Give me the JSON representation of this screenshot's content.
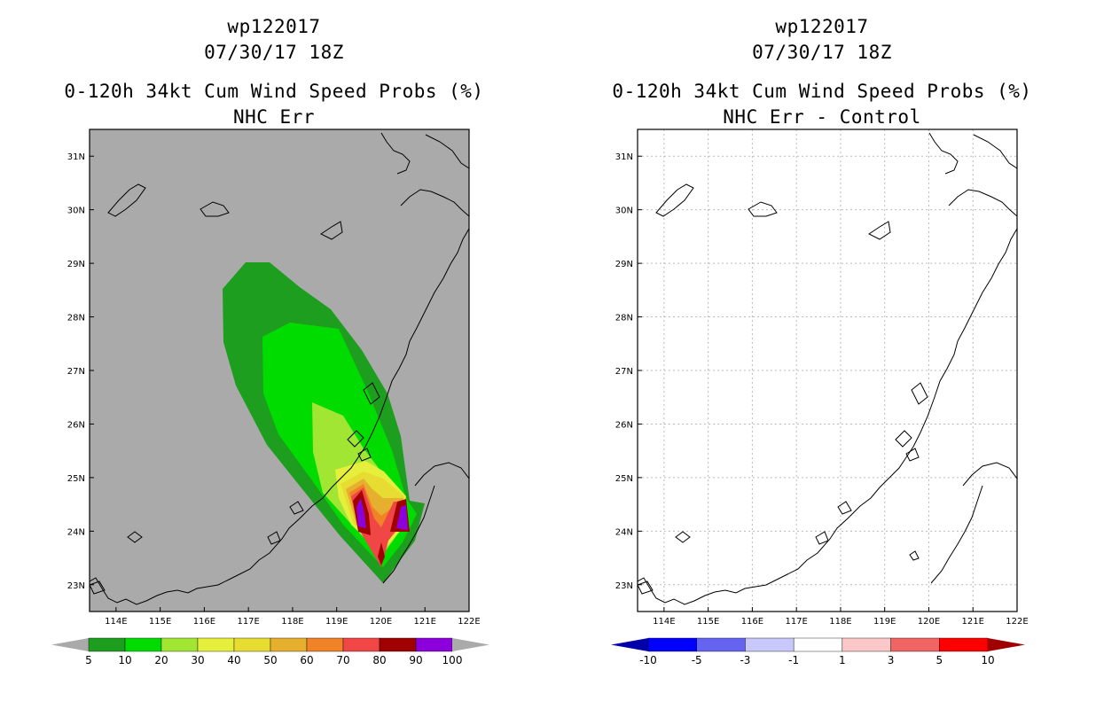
{
  "panels": [
    {
      "storm_id": "wp122017",
      "datetime": "07/30/17 18Z",
      "product": "0-120h 34kt Cum Wind Speed Probs (%)",
      "subtitle": "NHC Err",
      "lat_labels": [
        "31N",
        "30N",
        "29N",
        "28N",
        "27N",
        "26N",
        "25N",
        "24N",
        "23N"
      ],
      "lon_labels": [
        "114E",
        "115E",
        "116E",
        "117E",
        "118E",
        "119E",
        "120E",
        "121E",
        "122E"
      ],
      "colorbar": {
        "labels": [
          "5",
          "10",
          "20",
          "30",
          "40",
          "50",
          "60",
          "70",
          "80",
          "90",
          "100"
        ],
        "colors": [
          "#aaaaaa",
          "#1e9e1e",
          "#00dc00",
          "#a0e632",
          "#e6f03c",
          "#e6dc32",
          "#e6af2d",
          "#f08228",
          "#f04646",
          "#a00000",
          "#8c00dc",
          "#aaaaaa"
        ]
      }
    },
    {
      "storm_id": "wp122017",
      "datetime": "07/30/17 18Z",
      "product": "0-120h 34kt Cum Wind Speed Probs (%)",
      "subtitle": "NHC Err - Control",
      "lat_labels": [
        "31N",
        "30N",
        "29N",
        "28N",
        "27N",
        "26N",
        "25N",
        "24N",
        "23N"
      ],
      "lon_labels": [
        "114E",
        "115E",
        "116E",
        "117E",
        "118E",
        "119E",
        "120E",
        "121E",
        "122E"
      ],
      "colorbar": {
        "labels": [
          "-10",
          "-5",
          "-3",
          "-1",
          "1",
          "3",
          "5",
          "10"
        ],
        "colors": [
          "#0000aa",
          "#0000ff",
          "#6464f0",
          "#c8c8fa",
          "#ffffff",
          "#fac8c8",
          "#f06464",
          "#ff0000",
          "#a00000"
        ]
      }
    }
  ]
}
